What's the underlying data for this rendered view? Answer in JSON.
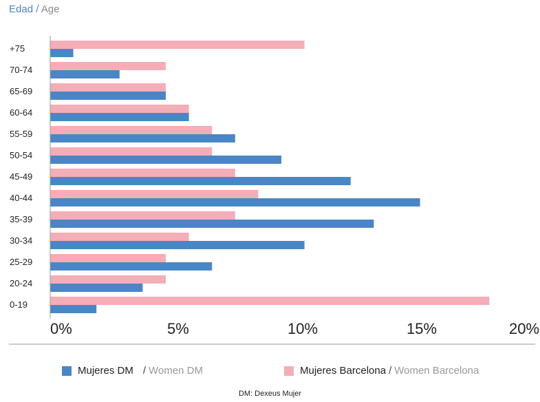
{
  "title": {
    "es": "Edad",
    "sep": "/",
    "en": "Age"
  },
  "legend": {
    "series1": {
      "es": "Mujeres DM",
      "sep": "/",
      "en": "Women DM",
      "color": "#4a86c5"
    },
    "series2": {
      "es": "Mujeres Barcelona",
      "sep": "/",
      "en": "Women Barcelona",
      "color": "#f5adb8"
    }
  },
  "source": "DM: Dexeus Mujer",
  "chart_data": {
    "type": "bar",
    "orientation": "horizontal",
    "categories": [
      "+75",
      "70-74",
      "65-69",
      "60-64",
      "55-59",
      "50-54",
      "45-49",
      "40-44",
      "35-39",
      "30-34",
      "25-29",
      "20-24",
      "0-19"
    ],
    "series": [
      {
        "name": "Mujeres Barcelona / Women Barcelona",
        "color": "#f5adb8",
        "values": [
          11.0,
          5.0,
          5.0,
          6.0,
          7.0,
          7.0,
          8.0,
          9.0,
          8.0,
          6.0,
          5.0,
          5.0,
          19.0
        ]
      },
      {
        "name": "Mujeres DM / Women DM",
        "color": "#4a86c5",
        "values": [
          1.0,
          3.0,
          5.0,
          6.0,
          8.0,
          10.0,
          13.0,
          16.0,
          14.0,
          11.0,
          7.0,
          4.0,
          2.0
        ]
      }
    ],
    "x_ticks": [
      "0%",
      "5%",
      "10%",
      "15%",
      "20%"
    ],
    "xlim": [
      0,
      20
    ],
    "grid": false
  }
}
